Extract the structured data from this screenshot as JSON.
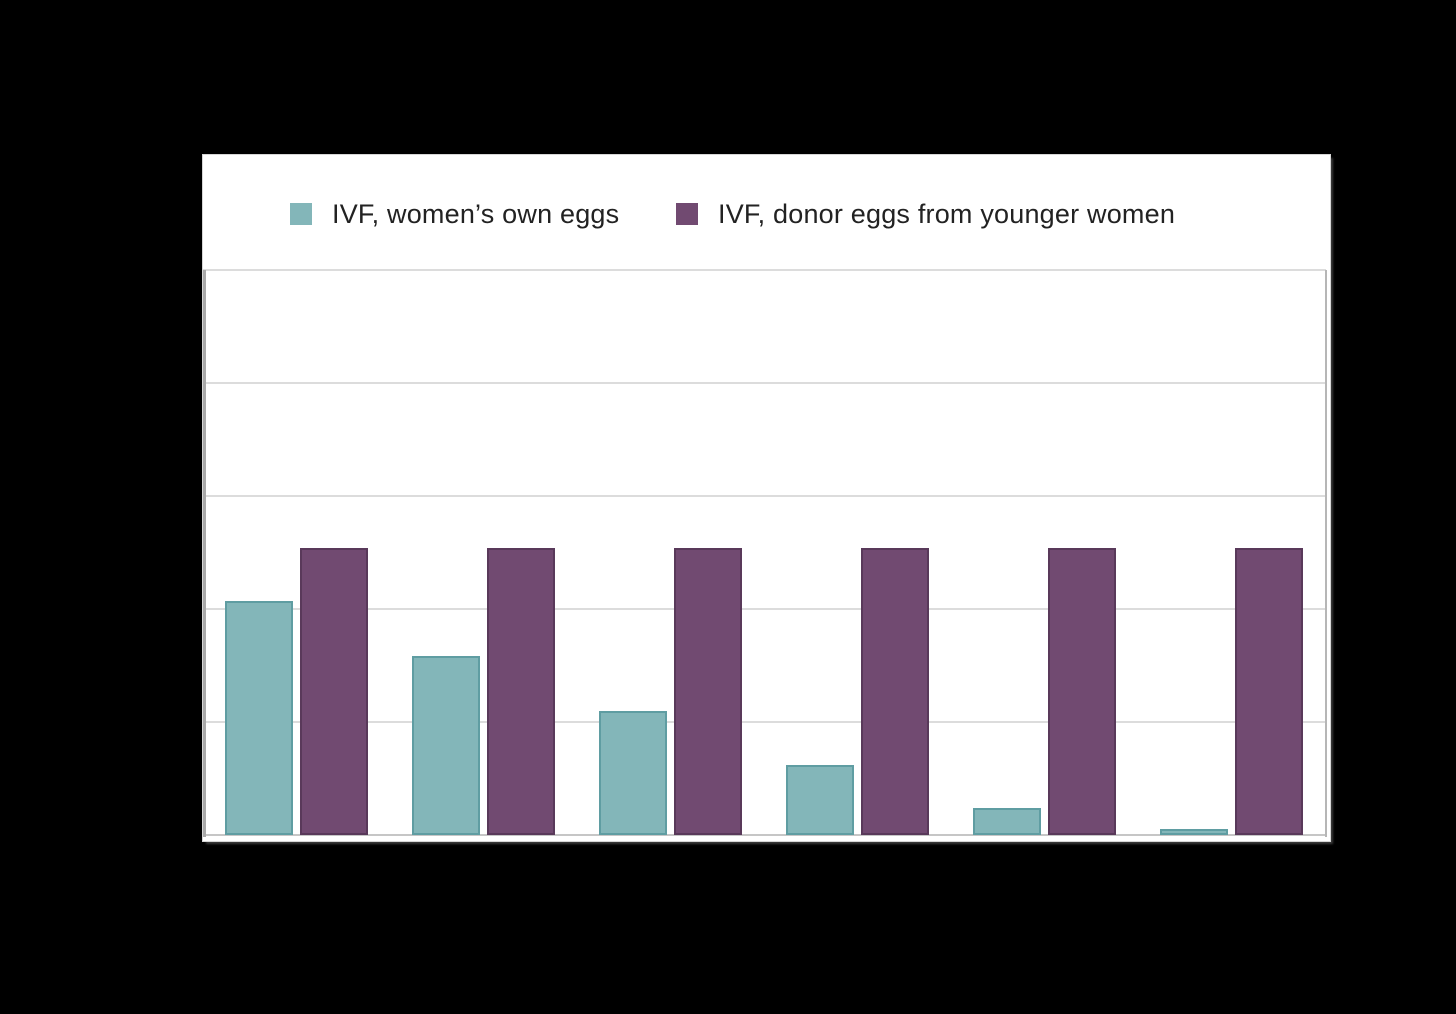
{
  "page": {
    "background_color": "#000000",
    "panel_background": "#ffffff",
    "gridline_color": "#dcdcdc",
    "axis_line_color": "#a9a9a9"
  },
  "legend": {
    "items": [
      {
        "label": "IVF, women’s own eggs",
        "color": "#83b6b9"
      },
      {
        "label": "IVF, donor eggs from younger women",
        "color": "#714a71"
      }
    ]
  },
  "chart_data": {
    "type": "bar",
    "title": "",
    "categories": [
      "",
      "",
      "",
      "",
      "",
      ""
    ],
    "series": [
      {
        "name": "IVF, women’s own eggs",
        "color": "#83b6b9",
        "border_color": "#5f9da2",
        "values": [
          20.7,
          15.8,
          11,
          6.2,
          2.4,
          0.5
        ]
      },
      {
        "name": "IVF, donor eggs from younger women",
        "color": "#714a71",
        "border_color": "#59395a",
        "values": [
          25.4,
          25.4,
          25.4,
          25.4,
          25.4,
          25.4
        ]
      }
    ],
    "ylim": [
      0,
      50
    ],
    "gridline_interval": 10,
    "grid": true,
    "legend_position": "top",
    "x_axis_labels_visible": false,
    "y_axis_labels_visible": false
  }
}
